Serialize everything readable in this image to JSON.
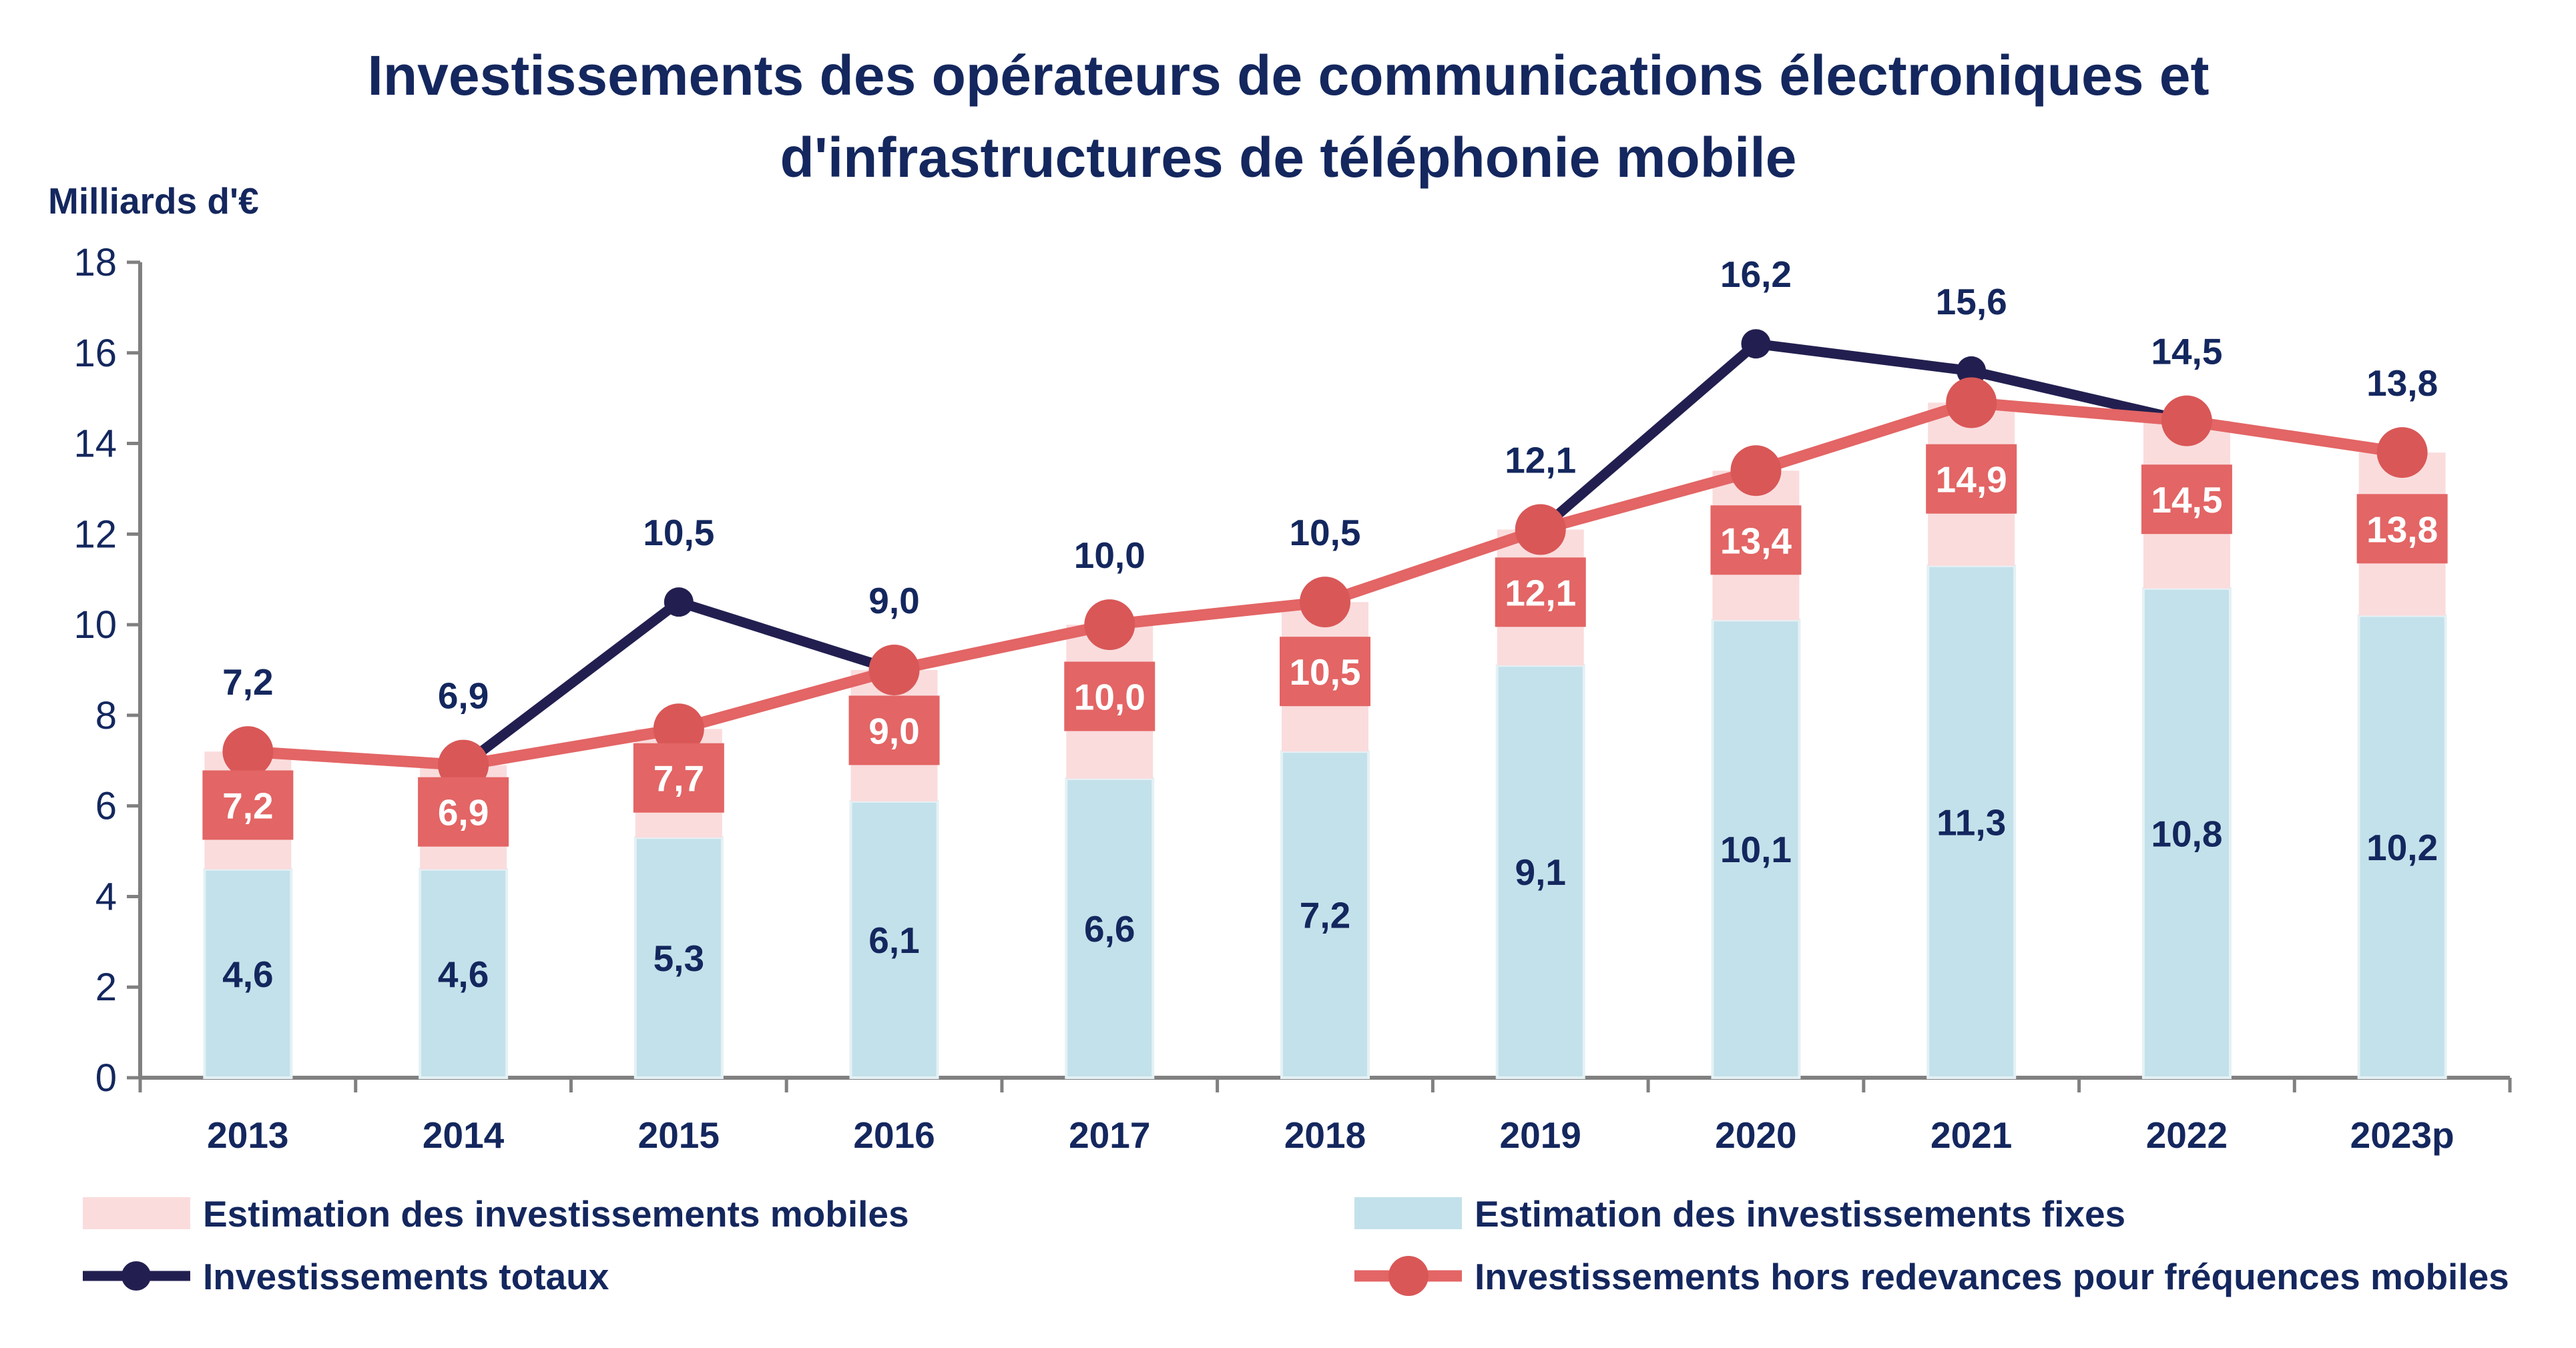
{
  "chart_data": {
    "type": "bar+line",
    "title_lines": [
      "Investissements des opérateurs de communications électroniques et",
      "d'infrastructures de téléphonie mobile"
    ],
    "ylabel": "Milliards d'€",
    "ylim": [
      0,
      18
    ],
    "yticks": [
      "0",
      "2",
      "4",
      "6",
      "8",
      "10",
      "12",
      "14",
      "16",
      "18"
    ],
    "grid": false,
    "legend_position": "bottom",
    "categories": [
      "2013",
      "2014",
      "2015",
      "2016",
      "2017",
      "2018",
      "2019",
      "2020",
      "2021",
      "2022",
      "2023p"
    ],
    "stacked_bars": [
      {
        "name": "Estimation des investissements fixes",
        "color": "#c3e1ea",
        "values": [
          4.6,
          4.6,
          5.3,
          6.1,
          6.6,
          7.2,
          9.1,
          10.1,
          11.3,
          10.8,
          10.2
        ],
        "labels": [
          "4,6",
          "4,6",
          "5,3",
          "6,1",
          "6,6",
          "7,2",
          "9,1",
          "10,1",
          "11,3",
          "10,8",
          "10,2"
        ]
      },
      {
        "name": "Estimation des investissements mobiles",
        "color": "#fadcdd",
        "values": [
          2.6,
          2.3,
          2.4,
          2.9,
          3.4,
          3.3,
          3.0,
          3.3,
          3.6,
          3.7,
          3.6
        ]
      }
    ],
    "lines": [
      {
        "name": "Investissements totaux",
        "color": "#221f50",
        "values": [
          7.2,
          6.9,
          10.5,
          9.0,
          10.0,
          10.5,
          12.1,
          16.2,
          15.6,
          14.5,
          13.8
        ],
        "labels": [
          "7,2",
          "6,9",
          "10,5",
          "9,0",
          "10,0",
          "10,5",
          "12,1",
          "16,2",
          "15,6",
          "14,5",
          "13,8"
        ]
      },
      {
        "name": "Investissements hors redevances pour fréquences mobiles",
        "color": "#e36565",
        "values": [
          7.2,
          6.9,
          7.7,
          9.0,
          10.0,
          10.5,
          12.1,
          13.4,
          14.9,
          14.5,
          13.8
        ],
        "labels": [
          "7,2",
          "6,9",
          "7,7",
          "9,0",
          "10,0",
          "10,5",
          "12,1",
          "13,4",
          "14,9",
          "14,5",
          "13,8"
        ]
      }
    ]
  }
}
